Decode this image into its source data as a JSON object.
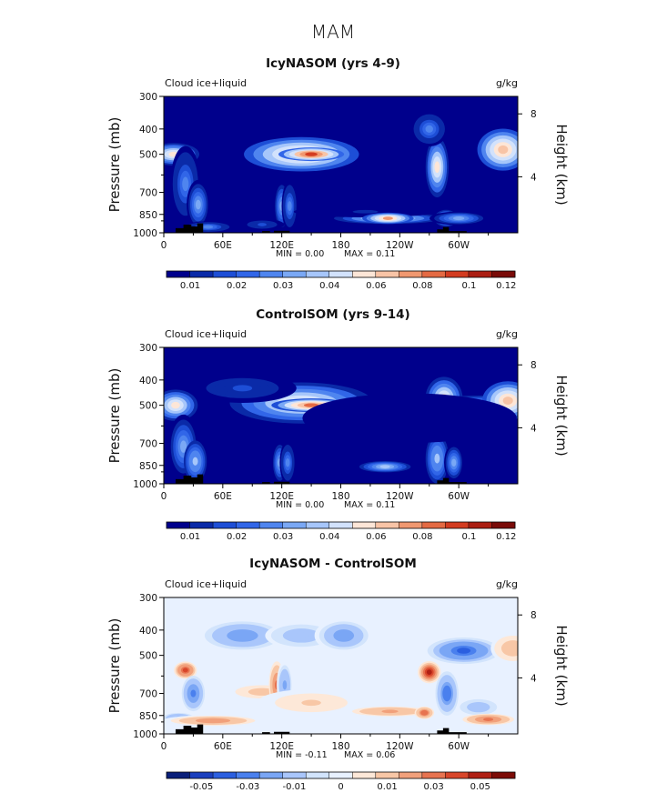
{
  "figure_title": "MAM",
  "chart_data": [
    {
      "type": "heatmap",
      "title": "IcyNASOM (yrs 4-9)",
      "left_label": "Cloud ice+liquid",
      "right_label": "g/kg",
      "xlabel": "",
      "ylabel": "Pressure (mb)",
      "y2label": "Height (km)",
      "x_ticks": [
        "0",
        "60E",
        "120E",
        "180",
        "120W",
        "60W"
      ],
      "x_tick_lon": [
        0,
        60,
        120,
        180,
        240,
        300
      ],
      "xlim": [
        0,
        360
      ],
      "y_ticks": [
        300,
        400,
        500,
        700,
        850,
        1000
      ],
      "ylim": [
        1000,
        300
      ],
      "y2_ticks": [
        "8",
        "4"
      ],
      "y2_tick_pressure": [
        350,
        610
      ],
      "min_text": "MIN =     0.00",
      "max_text": "MAX =     0.11",
      "colorbar_labels": [
        "0.01",
        "0.02",
        "0.03",
        "0.04",
        "0.06",
        "0.08",
        "0.1",
        "0.12"
      ],
      "levels": [
        0.01,
        0.015,
        0.02,
        0.025,
        0.03,
        0.035,
        0.04,
        0.05,
        0.06,
        0.07,
        0.08,
        0.09,
        0.1,
        0.11,
        0.12
      ],
      "blobs": [
        {
          "lon": 10,
          "p": 500,
          "w": 14,
          "h": 70,
          "v": 0.06
        },
        {
          "lon": 22,
          "p": 650,
          "w": 8,
          "h": 320,
          "v": 0.03
        },
        {
          "lon": 35,
          "p": 780,
          "w": 6,
          "h": 250,
          "v": 0.035
        },
        {
          "lon": 45,
          "p": 950,
          "w": 14,
          "h": 30,
          "v": 0.03
        },
        {
          "lon": 140,
          "p": 500,
          "w": 32,
          "h": 110,
          "v": 0.07
        },
        {
          "lon": 150,
          "p": 500,
          "w": 18,
          "h": 40,
          "v": 0.1
        },
        {
          "lon": 120,
          "p": 790,
          "w": 4,
          "h": 260,
          "v": 0.035
        },
        {
          "lon": 128,
          "p": 790,
          "w": 4,
          "h": 260,
          "v": 0.03
        },
        {
          "lon": 100,
          "p": 930,
          "w": 12,
          "h": 60,
          "v": 0.02
        },
        {
          "lon": 228,
          "p": 880,
          "w": 30,
          "h": 40,
          "v": 0.05
        },
        {
          "lon": 205,
          "p": 830,
          "w": 40,
          "h": 25,
          "v": 0.015
        },
        {
          "lon": 228,
          "p": 880,
          "w": 14,
          "h": 15,
          "v": 0.08
        },
        {
          "lon": 278,
          "p": 560,
          "w": 6,
          "h": 220,
          "v": 0.06
        },
        {
          "lon": 287,
          "p": 880,
          "w": 6,
          "h": 90,
          "v": 0.04
        },
        {
          "lon": 300,
          "p": 880,
          "w": 16,
          "h": 70,
          "v": 0.035
        },
        {
          "lon": 345,
          "p": 480,
          "w": 14,
          "h": 130,
          "v": 0.07
        },
        {
          "lon": 270,
          "p": 400,
          "w": 10,
          "h": 90,
          "v": 0.03
        }
      ]
    },
    {
      "type": "heatmap",
      "title": "ControlSOM (yrs 9-14)",
      "left_label": "Cloud ice+liquid",
      "right_label": "g/kg",
      "xlabel": "",
      "ylabel": "Pressure (mb)",
      "y2label": "Height (km)",
      "x_ticks": [
        "0",
        "60E",
        "120E",
        "180",
        "120W",
        "60W"
      ],
      "x_tick_lon": [
        0,
        60,
        120,
        180,
        240,
        300
      ],
      "xlim": [
        0,
        360
      ],
      "y_ticks": [
        300,
        400,
        500,
        700,
        850,
        1000
      ],
      "ylim": [
        1000,
        300
      ],
      "y2_ticks": [
        "8",
        "4"
      ],
      "y2_tick_pressure": [
        350,
        610
      ],
      "min_text": "MIN =     0.00",
      "max_text": "MAX =     0.11",
      "colorbar_labels": [
        "0.01",
        "0.02",
        "0.03",
        "0.04",
        "0.06",
        "0.08",
        "0.1",
        "0.12"
      ],
      "levels": [
        0.01,
        0.015,
        0.02,
        0.025,
        0.03,
        0.035,
        0.04,
        0.05,
        0.06,
        0.07,
        0.08,
        0.09,
        0.1,
        0.11,
        0.12
      ],
      "blobs": [
        {
          "lon": 12,
          "p": 500,
          "w": 12,
          "h": 100,
          "v": 0.06
        },
        {
          "lon": 20,
          "p": 720,
          "w": 8,
          "h": 300,
          "v": 0.035
        },
        {
          "lon": 32,
          "p": 820,
          "w": 6,
          "h": 220,
          "v": 0.04
        },
        {
          "lon": 140,
          "p": 490,
          "w": 40,
          "h": 130,
          "v": 0.06
        },
        {
          "lon": 150,
          "p": 500,
          "w": 22,
          "h": 40,
          "v": 0.09
        },
        {
          "lon": 80,
          "p": 430,
          "w": 30,
          "h": 80,
          "v": 0.02
        },
        {
          "lon": 118,
          "p": 830,
          "w": 4,
          "h": 230,
          "v": 0.035
        },
        {
          "lon": 126,
          "p": 830,
          "w": 4,
          "h": 230,
          "v": 0.03
        },
        {
          "lon": 225,
          "p": 860,
          "w": 14,
          "h": 25,
          "v": 0.045
        },
        {
          "lon": 285,
          "p": 470,
          "w": 10,
          "h": 130,
          "v": 0.06
        },
        {
          "lon": 278,
          "p": 800,
          "w": 6,
          "h": 260,
          "v": 0.04
        },
        {
          "lon": 295,
          "p": 830,
          "w": 5,
          "h": 200,
          "v": 0.035
        },
        {
          "lon": 330,
          "p": 500,
          "w": 50,
          "h": 60,
          "v": 0.04
        },
        {
          "lon": 350,
          "p": 480,
          "w": 14,
          "h": 120,
          "v": 0.07
        },
        {
          "lon": 250,
          "p": 560,
          "w": 60,
          "h": 180,
          "v": 0.012
        }
      ]
    },
    {
      "type": "heatmap",
      "title": "IcyNASOM - ControlSOM",
      "left_label": "Cloud ice+liquid",
      "right_label": "g/kg",
      "xlabel": "",
      "ylabel": "Pressure (mb)",
      "y2label": "Height (km)",
      "x_ticks": [
        "0",
        "60E",
        "120E",
        "180",
        "120W",
        "60W"
      ],
      "x_tick_lon": [
        0,
        60,
        120,
        180,
        240,
        300
      ],
      "xlim": [
        0,
        360
      ],
      "y_ticks": [
        300,
        400,
        500,
        700,
        850,
        1000
      ],
      "ylim": [
        1000,
        300
      ],
      "y2_ticks": [
        "8",
        "4"
      ],
      "y2_tick_pressure": [
        350,
        610
      ],
      "min_text": "MIN =   -0.11",
      "max_text": "MAX =     0.06",
      "colorbar_labels": [
        "-0.05",
        "-0.03",
        "-0.01",
        "0",
        "0.01",
        "0.03",
        "0.05"
      ],
      "levels": [
        -0.06,
        -0.05,
        -0.04,
        -0.03,
        -0.02,
        -0.01,
        -0.005,
        0.0,
        0.005,
        0.01,
        0.02,
        0.03,
        0.04,
        0.05,
        0.06
      ],
      "blobs": [
        {
          "lon": 22,
          "p": 570,
          "w": 6,
          "h": 60,
          "v": 0.04
        },
        {
          "lon": 30,
          "p": 700,
          "w": 6,
          "h": 160,
          "v": -0.03
        },
        {
          "lon": 15,
          "p": 870,
          "w": 10,
          "h": 60,
          "v": -0.02
        },
        {
          "lon": 50,
          "p": 890,
          "w": 28,
          "h": 30,
          "v": 0.025
        },
        {
          "lon": 80,
          "p": 420,
          "w": 25,
          "h": 90,
          "v": -0.025
        },
        {
          "lon": 100,
          "p": 690,
          "w": 22,
          "h": 80,
          "v": 0.012
        },
        {
          "lon": 115,
          "p": 650,
          "w": 4,
          "h": 200,
          "v": 0.03
        },
        {
          "lon": 123,
          "p": 650,
          "w": 4,
          "h": 200,
          "v": -0.02
        },
        {
          "lon": 140,
          "p": 420,
          "w": 20,
          "h": 70,
          "v": -0.015
        },
        {
          "lon": 150,
          "p": 760,
          "w": 30,
          "h": 130,
          "v": 0.01
        },
        {
          "lon": 183,
          "p": 420,
          "w": 16,
          "h": 90,
          "v": -0.025
        },
        {
          "lon": 230,
          "p": 820,
          "w": 25,
          "h": 30,
          "v": 0.02
        },
        {
          "lon": 270,
          "p": 580,
          "w": 6,
          "h": 80,
          "v": 0.05
        },
        {
          "lon": 288,
          "p": 700,
          "w": 6,
          "h": 200,
          "v": -0.035
        },
        {
          "lon": 265,
          "p": 830,
          "w": 5,
          "h": 60,
          "v": 0.035
        },
        {
          "lon": 305,
          "p": 480,
          "w": 20,
          "h": 80,
          "v": -0.04
        },
        {
          "lon": 320,
          "p": 790,
          "w": 12,
          "h": 90,
          "v": -0.015
        },
        {
          "lon": 330,
          "p": 880,
          "w": 14,
          "h": 40,
          "v": 0.03
        },
        {
          "lon": 355,
          "p": 470,
          "w": 12,
          "h": 90,
          "v": 0.015
        }
      ]
    }
  ],
  "colors": {
    "scale_seq": [
      "#00008c",
      "#0a2aa8",
      "#1d4ed6",
      "#3166e8",
      "#4f85ef",
      "#7aa8f5",
      "#a6c6fa",
      "#d2e2fc",
      "#fde6d7",
      "#f8c4a6",
      "#f09870",
      "#e46a43",
      "#d33c20",
      "#ab1e12",
      "#7a0b08"
    ],
    "scale_div": [
      "#0a1f7a",
      "#1a3fbe",
      "#2b5fe0",
      "#4a80ee",
      "#7aa6f5",
      "#a9c6fb",
      "#d2e4fc",
      "#e8f1ff",
      "#fde8d8",
      "#f8c7a6",
      "#f1a07b",
      "#e77350",
      "#d8462a",
      "#b02014",
      "#7d0c07"
    ]
  }
}
